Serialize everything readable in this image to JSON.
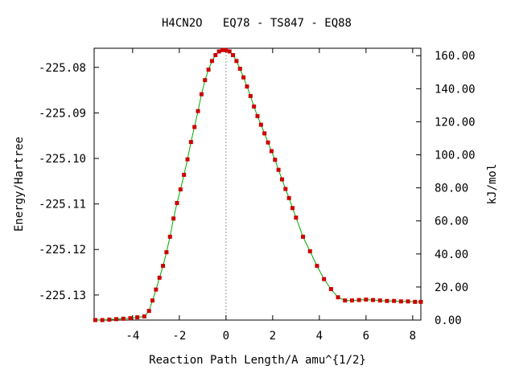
{
  "chart_data": {
    "type": "line",
    "title": "H4CN2O   EQ78 - TS847 - EQ88",
    "xlabel": "Reaction Path Length/A amu^{1/2}",
    "ylabel": "Energy/Hartree",
    "y2label": "kJ/mol",
    "xlim": [
      -5.65,
      8.35
    ],
    "ylim": [
      -225.1355,
      -225.0758
    ],
    "y2lim": [
      0,
      164.5
    ],
    "x_ticks": [
      -4,
      -2,
      0,
      2,
      4,
      6,
      8
    ],
    "x_tick_labels": [
      "-4",
      "-2",
      "0",
      "2",
      "4",
      "6",
      "8"
    ],
    "y_ticks": [
      -225.08,
      -225.09,
      -225.1,
      -225.11,
      -225.12,
      -225.13
    ],
    "y_tick_labels": [
      "-225.08",
      "-225.09",
      "-225.10",
      "-225.11",
      "-225.12",
      "-225.13"
    ],
    "y2_ticks": [
      0,
      20,
      40,
      60,
      80,
      100,
      120,
      140,
      160
    ],
    "y2_tick_labels": [
      "0.00",
      "20.00",
      "40.00",
      "60.00",
      "80.00",
      "100.00",
      "120.00",
      "140.00",
      "160.00"
    ],
    "ts_marker_x": 0,
    "grid": false,
    "series": [
      {
        "line_color": "#00aa00",
        "marker_color": "#cc0000",
        "x": [
          -5.6,
          -5.3,
          -5.0,
          -4.7,
          -4.4,
          -4.1,
          -3.8,
          -3.5,
          -3.3,
          -3.15,
          -3.0,
          -2.85,
          -2.7,
          -2.55,
          -2.4,
          -2.25,
          -2.1,
          -1.95,
          -1.8,
          -1.65,
          -1.5,
          -1.35,
          -1.2,
          -1.05,
          -0.9,
          -0.75,
          -0.6,
          -0.45,
          -0.3,
          -0.15,
          0.0,
          0.15,
          0.3,
          0.45,
          0.6,
          0.75,
          0.9,
          1.05,
          1.2,
          1.35,
          1.5,
          1.65,
          1.8,
          1.95,
          2.1,
          2.25,
          2.4,
          2.55,
          2.7,
          2.85,
          3.0,
          3.3,
          3.6,
          3.9,
          4.2,
          4.5,
          4.8,
          5.1,
          5.4,
          5.7,
          6.0,
          6.3,
          6.6,
          6.9,
          7.2,
          7.5,
          7.8,
          8.1,
          8.35
        ],
        "y": [
          -225.1355,
          -225.1355,
          -225.1354,
          -225.1353,
          -225.1352,
          -225.1351,
          -225.1349,
          -225.1347,
          -225.1335,
          -225.1312,
          -225.1288,
          -225.1262,
          -225.1236,
          -225.1206,
          -225.1172,
          -225.1132,
          -225.1098,
          -225.1068,
          -225.1036,
          -225.1002,
          -225.0964,
          -225.0931,
          -225.0896,
          -225.0859,
          -225.0828,
          -225.0805,
          -225.0786,
          -225.0773,
          -225.0765,
          -225.0762,
          -225.0762,
          -225.0765,
          -225.0773,
          -225.0786,
          -225.0803,
          -225.0822,
          -225.0842,
          -225.0863,
          -225.0886,
          -225.0907,
          -225.0926,
          -225.0945,
          -225.0965,
          -225.0984,
          -225.1003,
          -225.1025,
          -225.1046,
          -225.1067,
          -225.1087,
          -225.1109,
          -225.113,
          -225.1172,
          -225.1204,
          -225.1236,
          -225.1265,
          -225.1287,
          -225.1305,
          -225.1312,
          -225.1312,
          -225.1311,
          -225.131,
          -225.1311,
          -225.1312,
          -225.1313,
          -225.1313,
          -225.1314,
          -225.1314,
          -225.1315,
          -225.1315
        ]
      }
    ]
  }
}
